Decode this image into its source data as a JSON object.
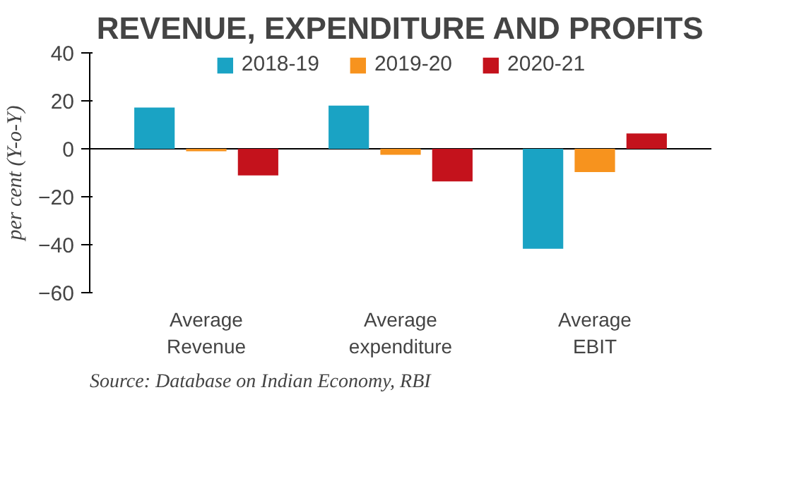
{
  "chart_data": {
    "type": "bar",
    "title": "REVENUE, EXPENDITURE AND PROFITS",
    "ylabel": "per cent (Y-o-Y)",
    "categories": [
      "Average\nRevenue",
      "Average\nexpenditure",
      "Average\nEBIT"
    ],
    "series": [
      {
        "name": "2018-19",
        "color": "#1aa3c4",
        "values": [
          17.2,
          18,
          -41.7
        ]
      },
      {
        "name": "2019-20",
        "color": "#f7931e",
        "values": [
          -1,
          -2.5,
          -9.7
        ]
      },
      {
        "name": "2020-21",
        "color": "#c4121c",
        "values": [
          -11.1,
          -13.6,
          6.4
        ]
      }
    ],
    "ylim": [
      -60,
      40
    ],
    "yticks": [
      -60,
      -40,
      -20,
      0,
      20,
      40
    ],
    "ref_lines": [
      {
        "axis": "y",
        "value": 0,
        "color": "#000000"
      }
    ],
    "grid": false,
    "legend": "top",
    "annotations": [
      "Source: Database on Indian Economy, RBI"
    ]
  }
}
